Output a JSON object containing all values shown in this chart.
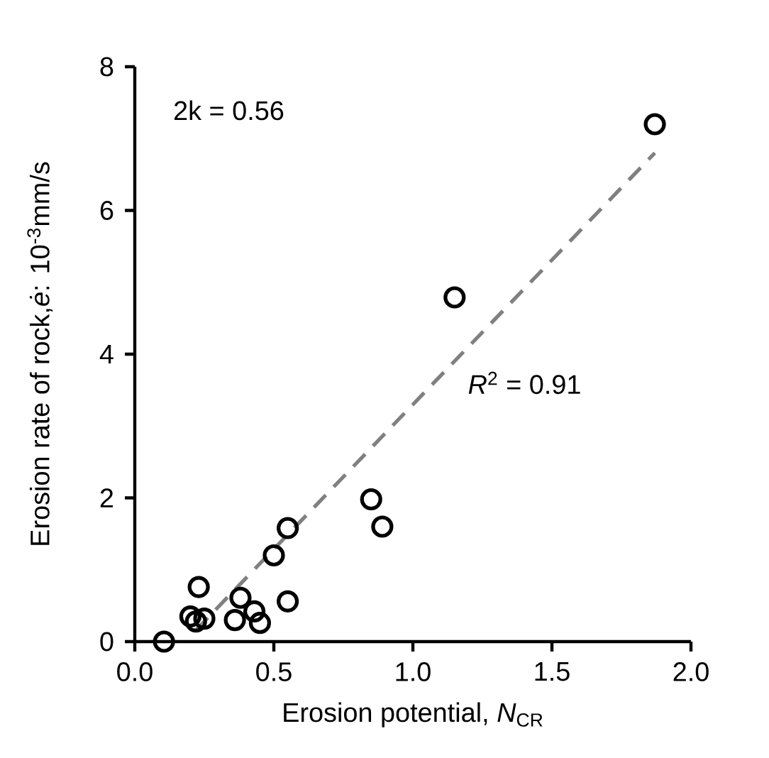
{
  "chart_data": {
    "type": "scatter",
    "xlabel": "Erosion potential, *N*$_{CR}$",
    "ylabel": "Erosion rate of rock,*ė*: 10$^{-3}$mm/s",
    "annotations": [
      "2k = 0.56",
      "*R*$^{2}$ = 0.91"
    ],
    "xlim": [
      0,
      2
    ],
    "ylim": [
      0,
      8
    ],
    "xticks": [
      {
        "value": 0,
        "label": "0.0"
      },
      {
        "value": 0.5,
        "label": "0.5"
      },
      {
        "value": 1,
        "label": "1.0"
      },
      {
        "value": 1.5,
        "label": "1.5"
      },
      {
        "value": 2,
        "label": "2.0"
      }
    ],
    "yticks": [
      0,
      2,
      4,
      6,
      8
    ],
    "series": [
      {
        "type": "line",
        "color": "#808080",
        "line_style": "dashed",
        "marker": "none",
        "x": [
          0.22,
          1.87
        ],
        "values": [
          0.16,
          6.8
        ]
      },
      {
        "type": "scatter",
        "color": "#000000",
        "marker": "circle",
        "x": [
          0.105,
          0.2,
          0.22,
          0.25,
          0.23,
          0.36,
          0.38,
          0.43,
          0.45,
          0.5,
          0.55,
          0.55,
          0.85,
          0.89,
          1.15,
          1.87
        ],
        "values": [
          0,
          0.35,
          0.28,
          0.32,
          0.76,
          0.3,
          0.61,
          0.42,
          0.26,
          1.2,
          1.58,
          0.56,
          1.98,
          1.6,
          4.79,
          7.2
        ]
      }
    ]
  }
}
